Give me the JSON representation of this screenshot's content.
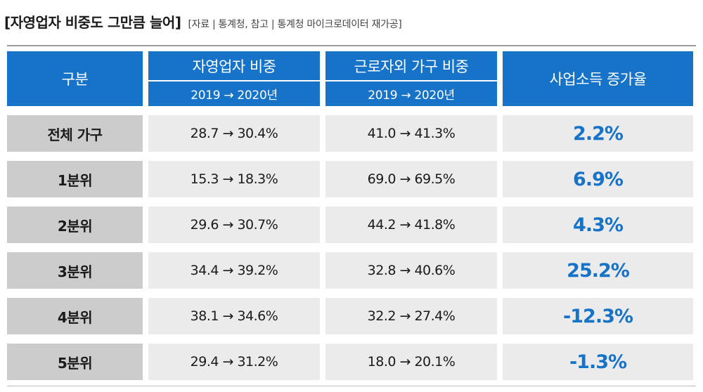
{
  "header": {
    "title": "[자영업자 비중도 그만큼 늘어]",
    "source": "[자료 | 통계청, 참고 | 통계청 마이크로데이터 재가공]"
  },
  "colors": {
    "header_blue": "#1773c8",
    "label_gray": "#cccccc",
    "cell_gray": "#ebebeb",
    "growth_blue": "#1773c8"
  },
  "chart_data": {
    "type": "table",
    "title": "[자영업자 비중도 그만큼 늘어]",
    "source": "[자료 | 통계청, 참고 | 통계청 마이크로데이터 재가공]",
    "columns": [
      {
        "label": "구분"
      },
      {
        "label": "자영업자 비중",
        "sub": "2019 → 2020년"
      },
      {
        "label": "근로자외 가구 비중",
        "sub": "2019 → 2020년"
      },
      {
        "label": "사업소득 증가율"
      }
    ],
    "rows": [
      {
        "label": "전체 가구",
        "self": "28.7 → 30.4%",
        "nonworker": "41.0 → 41.3%",
        "growth": "2.2%"
      },
      {
        "label": "1분위",
        "self": "15.3 → 18.3%",
        "nonworker": "69.0 → 69.5%",
        "growth": "6.9%"
      },
      {
        "label": "2분위",
        "self": "29.6 → 30.7%",
        "nonworker": "44.2 → 41.8%",
        "growth": "4.3%"
      },
      {
        "label": "3분위",
        "self": "34.4 → 39.2%",
        "nonworker": "32.8 → 40.6%",
        "growth": "25.2%"
      },
      {
        "label": "4분위",
        "self": "38.1 → 34.6%",
        "nonworker": "32.2 → 27.4%",
        "growth": "-12.3%"
      },
      {
        "label": "5분위",
        "self": "29.4 → 31.2%",
        "nonworker": "18.0 → 20.1%",
        "growth": "-1.3%"
      }
    ]
  }
}
